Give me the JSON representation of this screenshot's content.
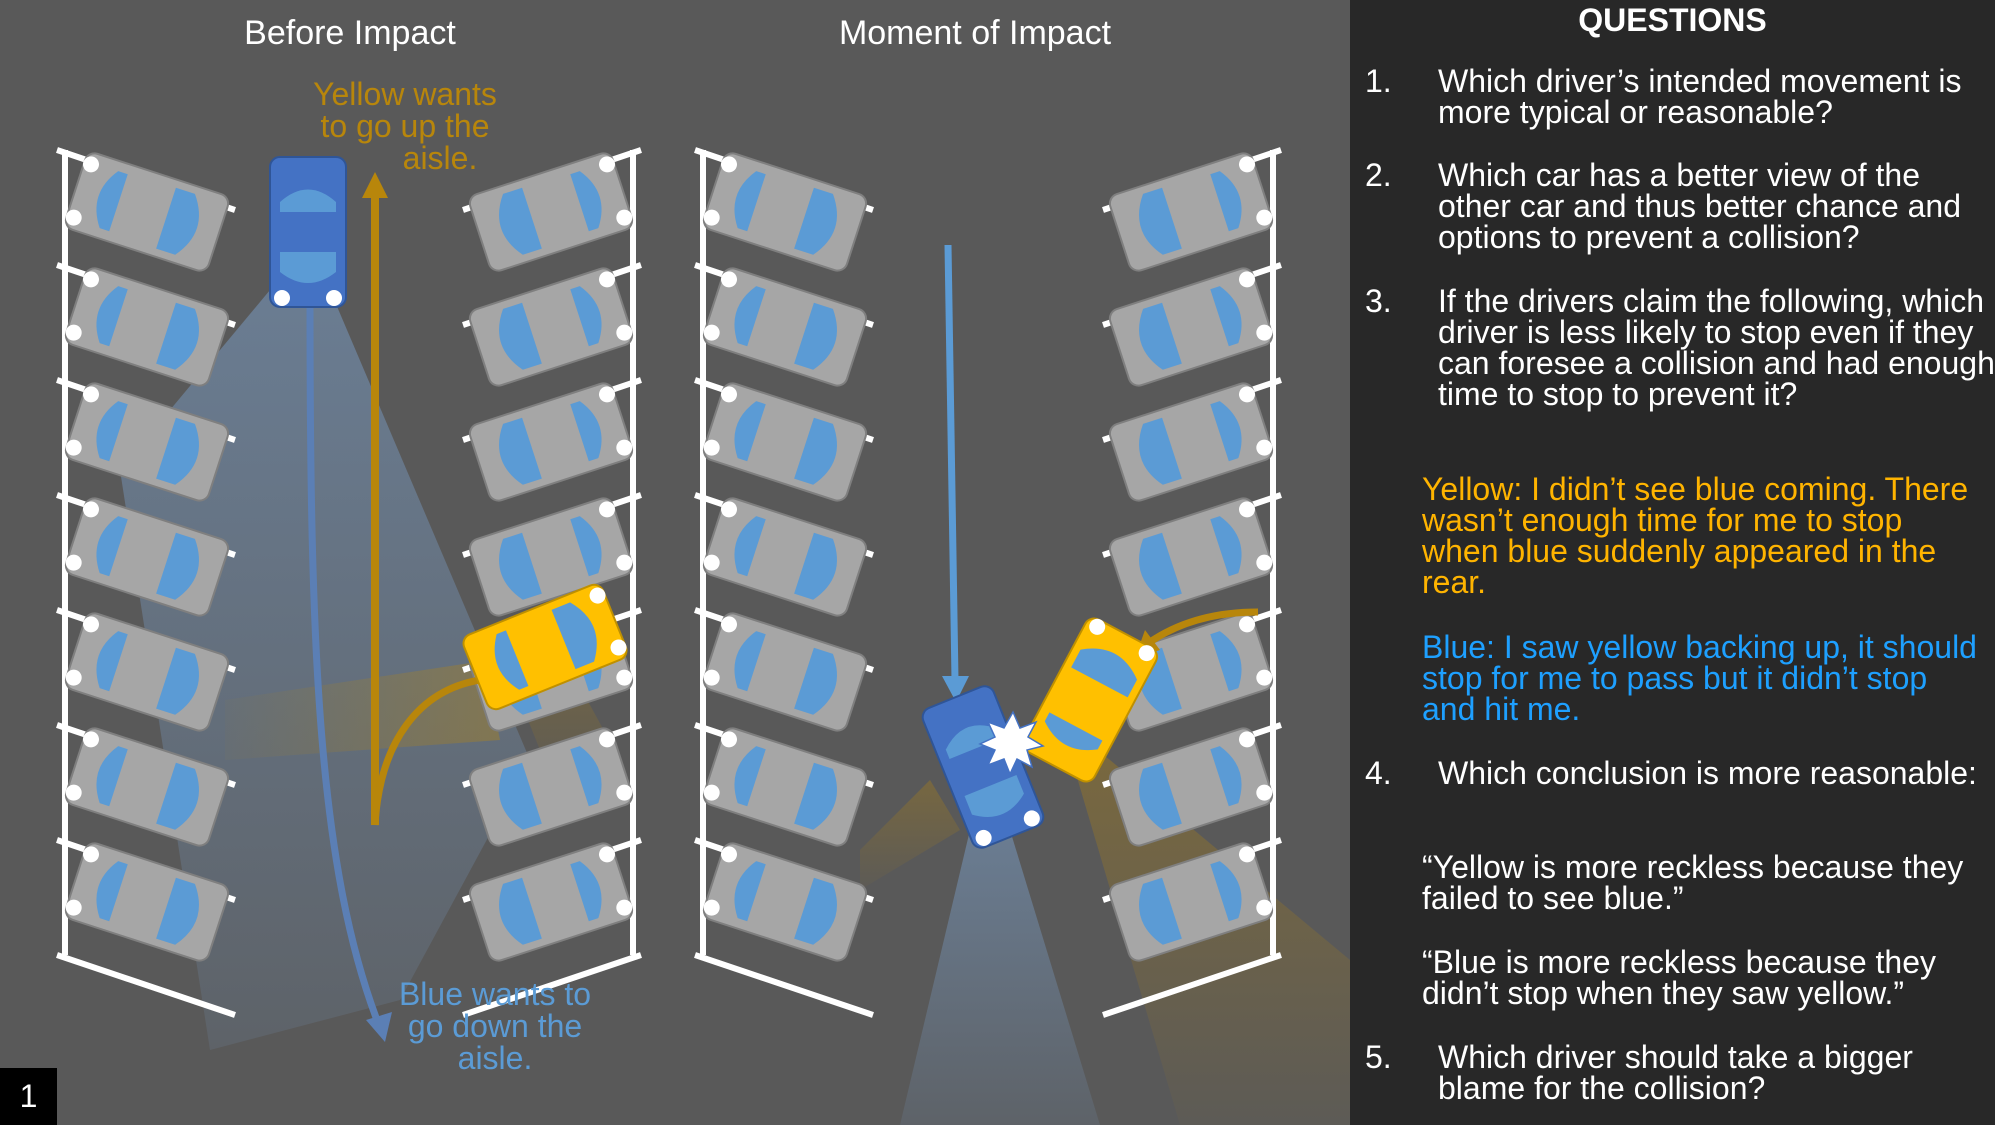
{
  "panels": {
    "before": {
      "title": "Before Impact"
    },
    "moment": {
      "title": "Moment of Impact"
    }
  },
  "notes": {
    "yellow": [
      "Yellow wants",
      "to go up the",
      "aisle."
    ],
    "blue": [
      "Blue wants to",
      "go down the",
      "aisle."
    ]
  },
  "questions": {
    "heading": "QUESTIONS",
    "q1": {
      "num": "1.",
      "text": "Which driver’s intended movement is more typical or reasonable?"
    },
    "q2": {
      "num": "2.",
      "text": "Which car has a better view of the other car and thus better chance and options to prevent a collision?"
    },
    "q3": {
      "num": "3.",
      "text": "If the drivers claim the following, which driver is less likely to stop even if they can foresee a collision and had enough time to stop to prevent it?"
    },
    "claim_yellow": "Yellow: I didn’t see blue coming. There wasn’t enough time for me to stop when blue suddenly appeared in the rear.",
    "claim_blue": "Blue: I saw yellow backing up, it should stop for me to pass but it didn’t stop and hit me.",
    "q4": {
      "num": "4.",
      "text": "Which conclusion is more reasonable:"
    },
    "quote_yellow": "“Yellow is more reckless because they failed to see blue.”",
    "quote_blue": "“Blue is more reckless because they didn’t stop when they saw yellow.”",
    "q5": {
      "num": "5.",
      "text": "Which driver should take a bigger blame for the collision?"
    }
  },
  "slide_number": "1",
  "colors": {
    "background": "#595959",
    "questions_panel": "#282828",
    "yellow": "#ffc000",
    "yellow_text": "#ffb400",
    "yellow_arrow": "#b8860b",
    "blue_car": "#4472c4",
    "blue_arrow": "#5b9bd5",
    "blue_text": "#1ea0ff",
    "parked_car": "#a6a6a6"
  }
}
